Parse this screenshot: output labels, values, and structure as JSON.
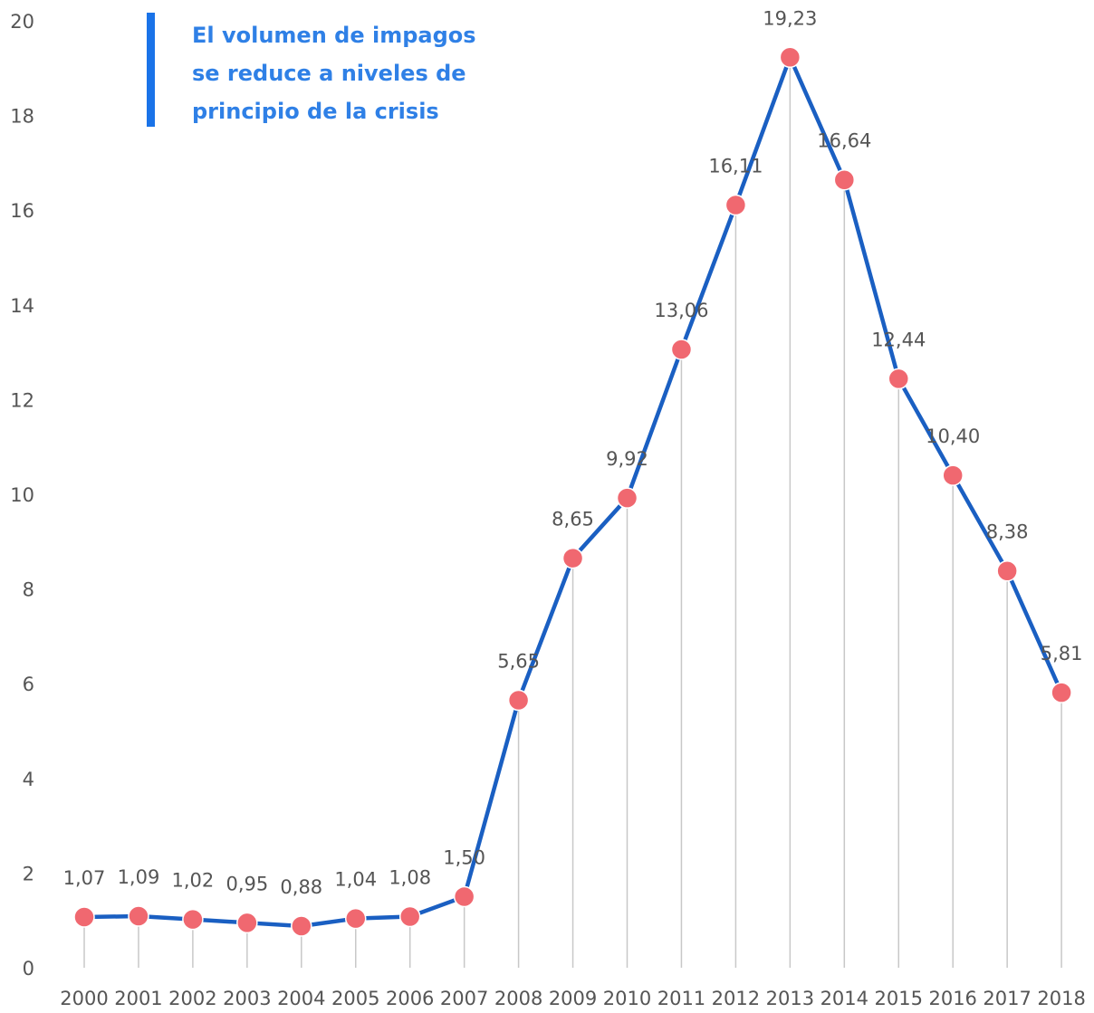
{
  "title": "El volumen de impagos\nse reduce a niveles de\nprincipio de la crisis",
  "colors": {
    "line": "#1a5fc2",
    "marker": "#f06870",
    "accent": "#1a73e8",
    "title": "#2f80e6",
    "text": "#555555",
    "drop": "#c8c8c8"
  },
  "chart_data": {
    "type": "line",
    "categories": [
      "2000",
      "2001",
      "2002",
      "2003",
      "2004",
      "2005",
      "2006",
      "2007",
      "2008",
      "2009",
      "2010",
      "2011",
      "2012",
      "2013",
      "2014",
      "2015",
      "2016",
      "2017",
      "2018"
    ],
    "values": [
      1.07,
      1.09,
      1.02,
      0.95,
      0.88,
      1.04,
      1.08,
      1.5,
      5.65,
      8.65,
      9.92,
      13.06,
      16.11,
      19.23,
      16.64,
      12.44,
      10.4,
      8.38,
      5.81
    ],
    "labels": [
      "1,07",
      "1,09",
      "1,02",
      "0,95",
      "0,88",
      "1,04",
      "1,08",
      "1,50",
      "5,65",
      "8,65",
      "9,92",
      "13,06",
      "16,11",
      "19,23",
      "16,64",
      "12,44",
      "10,40",
      "8,38",
      "5,81"
    ],
    "yticks": [
      "0",
      "2",
      "4",
      "6",
      "8",
      "10",
      "12",
      "14",
      "16",
      "18",
      "20"
    ],
    "ylim": [
      0,
      20
    ],
    "grid": false,
    "drop_lines": true
  }
}
